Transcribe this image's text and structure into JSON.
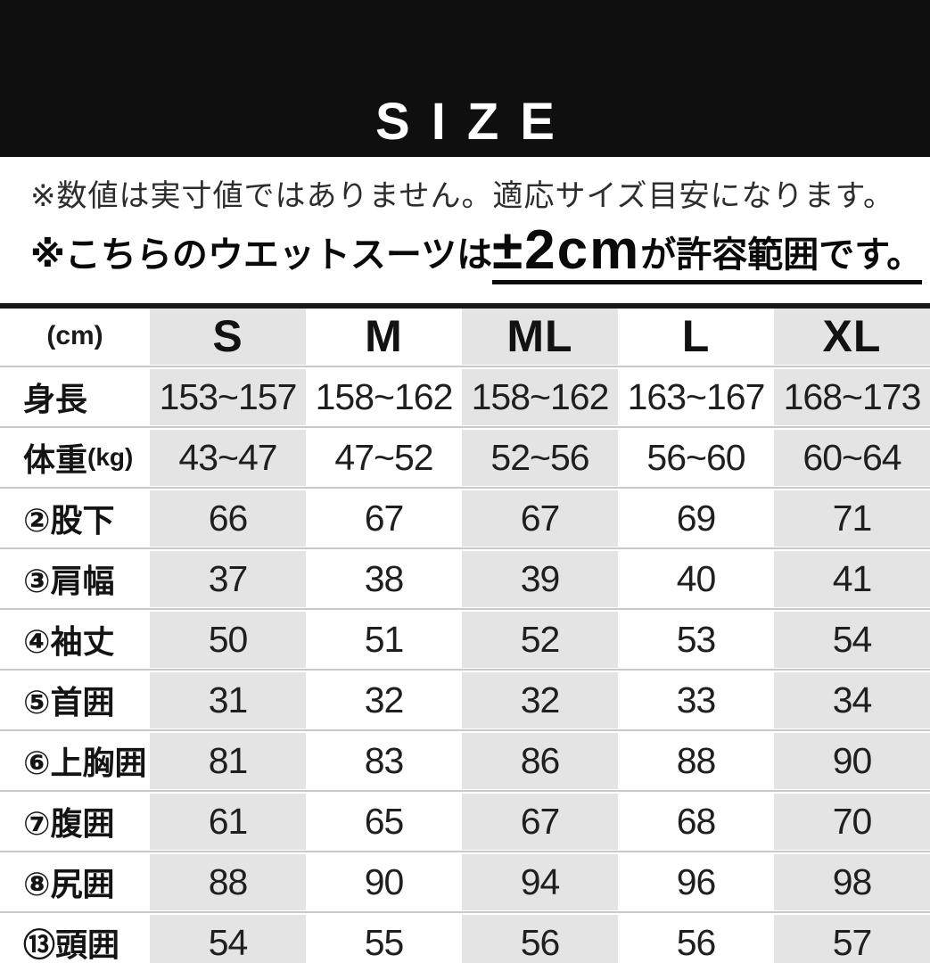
{
  "banner": {
    "title": "SIZE"
  },
  "notes": {
    "line1": "※数値は実寸値ではありません。適応サイズ目安になります。",
    "line2_prefix": "※こちらのウエットスーツは",
    "line2_big": "±2cm",
    "line2_suffix": "が許容範囲です。"
  },
  "colors": {
    "banner_background": "#0f0f0f",
    "banner_text": "#ffffff",
    "shaded_column": "#e4e4e4",
    "row_separator": "#c9c9c9",
    "table_top_border": "#161616"
  },
  "table": {
    "unit_label": "(cm)",
    "columns": [
      "S",
      "M",
      "ML",
      "L",
      "XL"
    ],
    "rows": [
      {
        "label": "身長",
        "label_suffix": "",
        "values": [
          "153~157",
          "158~162",
          "158~162",
          "163~167",
          "168~173"
        ]
      },
      {
        "label": "体重",
        "label_suffix": "(kg)",
        "values": [
          "43~47",
          "47~52",
          "52~56",
          "56~60",
          "60~64"
        ]
      },
      {
        "label": "②股下",
        "label_suffix": "",
        "values": [
          "66",
          "67",
          "67",
          "69",
          "71"
        ]
      },
      {
        "label": "③肩幅",
        "label_suffix": "",
        "values": [
          "37",
          "38",
          "39",
          "40",
          "41"
        ]
      },
      {
        "label": "④袖丈",
        "label_suffix": "",
        "values": [
          "50",
          "51",
          "52",
          "53",
          "54"
        ]
      },
      {
        "label": "⑤首囲",
        "label_suffix": "",
        "values": [
          "31",
          "32",
          "32",
          "33",
          "34"
        ]
      },
      {
        "label": "⑥上胸囲",
        "label_suffix": "",
        "values": [
          "81",
          "83",
          "86",
          "88",
          "90"
        ]
      },
      {
        "label": "⑦腹囲",
        "label_suffix": "",
        "values": [
          "61",
          "65",
          "67",
          "68",
          "70"
        ]
      },
      {
        "label": "⑧尻囲",
        "label_suffix": "",
        "values": [
          "88",
          "90",
          "94",
          "96",
          "98"
        ]
      },
      {
        "label": "⑬頭囲",
        "label_suffix": "",
        "values": [
          "54",
          "55",
          "56",
          "56",
          "57"
        ]
      }
    ]
  }
}
